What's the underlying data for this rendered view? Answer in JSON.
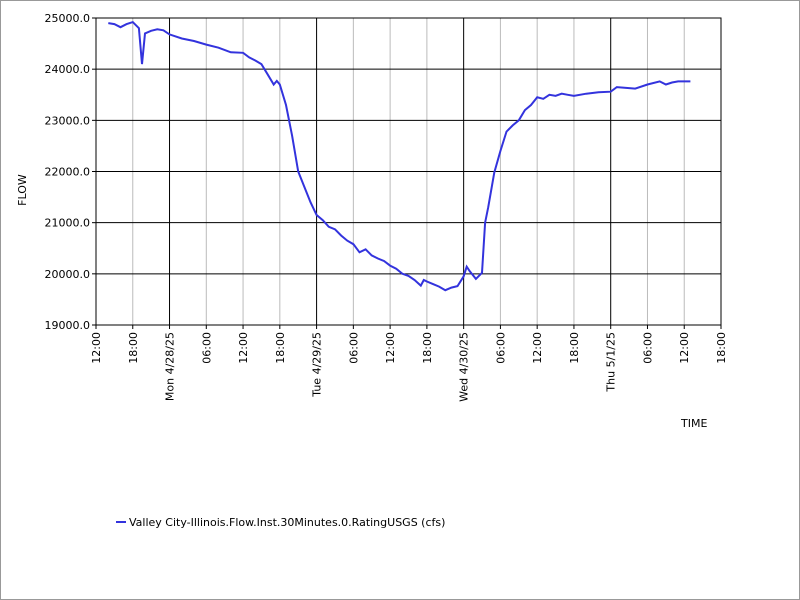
{
  "chart_data": {
    "type": "line",
    "xlabel": "TIME",
    "ylabel": "FLOW",
    "x": [
      "2025-04-27T14:00",
      "2025-04-27T15:00",
      "2025-04-27T16:00",
      "2025-04-27T17:00",
      "2025-04-27T18:00",
      "2025-04-27T19:00",
      "2025-04-27T19:30",
      "2025-04-27T20:00",
      "2025-04-27T21:00",
      "2025-04-27T22:00",
      "2025-04-27T23:00",
      "2025-04-28T00:00",
      "2025-04-28T02:00",
      "2025-04-28T04:00",
      "2025-04-28T06:00",
      "2025-04-28T08:00",
      "2025-04-28T10:00",
      "2025-04-28T12:00",
      "2025-04-28T13:00",
      "2025-04-28T14:00",
      "2025-04-28T15:00",
      "2025-04-28T16:00",
      "2025-04-28T17:00",
      "2025-04-28T17:30",
      "2025-04-28T18:00",
      "2025-04-28T19:00",
      "2025-04-28T20:00",
      "2025-04-28T21:00",
      "2025-04-28T22:00",
      "2025-04-28T23:00",
      "2025-04-29T00:00",
      "2025-04-29T01:00",
      "2025-04-29T02:00",
      "2025-04-29T03:00",
      "2025-04-29T04:00",
      "2025-04-29T05:00",
      "2025-04-29T06:00",
      "2025-04-29T07:00",
      "2025-04-29T08:00",
      "2025-04-29T09:00",
      "2025-04-29T10:00",
      "2025-04-29T11:00",
      "2025-04-29T12:00",
      "2025-04-29T13:00",
      "2025-04-29T14:00",
      "2025-04-29T15:00",
      "2025-04-29T16:00",
      "2025-04-29T17:00",
      "2025-04-29T17:30",
      "2025-04-29T18:00",
      "2025-04-29T19:00",
      "2025-04-29T20:00",
      "2025-04-29T21:00",
      "2025-04-29T22:00",
      "2025-04-29T23:00",
      "2025-04-30T00:00",
      "2025-04-30T00:30",
      "2025-04-30T01:00",
      "2025-04-30T02:00",
      "2025-04-30T03:00",
      "2025-04-30T03:30",
      "2025-04-30T04:00",
      "2025-04-30T05:00",
      "2025-04-30T06:00",
      "2025-04-30T07:00",
      "2025-04-30T08:00",
      "2025-04-30T09:00",
      "2025-04-30T10:00",
      "2025-04-30T11:00",
      "2025-04-30T12:00",
      "2025-04-30T13:00",
      "2025-04-30T14:00",
      "2025-04-30T15:00",
      "2025-04-30T16:00",
      "2025-04-30T17:00",
      "2025-04-30T18:00",
      "2025-04-30T20:00",
      "2025-04-30T22:00",
      "2025-05-01T00:00",
      "2025-05-01T01:00",
      "2025-05-01T02:00",
      "2025-05-01T04:00",
      "2025-05-01T06:00",
      "2025-05-01T08:00",
      "2025-05-01T09:00",
      "2025-05-01T10:00",
      "2025-05-01T11:00",
      "2025-05-01T13:00"
    ],
    "series": [
      {
        "name": "Valley City-Illinois.Flow.Inst.30Minutes.0.RatingUSGS (cfs)",
        "color": "#3333dd",
        "values": [
          24900,
          24880,
          24820,
          24880,
          24920,
          24800,
          24100,
          24700,
          24750,
          24780,
          24760,
          24680,
          24600,
          24550,
          24480,
          24420,
          24330,
          24320,
          24230,
          24170,
          24100,
          23900,
          23700,
          23770,
          23700,
          23300,
          22700,
          22000,
          21700,
          21400,
          21150,
          21050,
          20920,
          20870,
          20750,
          20650,
          20580,
          20420,
          20480,
          20360,
          20300,
          20250,
          20160,
          20100,
          20000,
          19960,
          19880,
          19770,
          19880,
          19850,
          19800,
          19750,
          19680,
          19730,
          19760,
          19950,
          20140,
          20050,
          19900,
          20020,
          21000,
          21300,
          21980,
          22400,
          22780,
          22900,
          23000,
          23200,
          23300,
          23450,
          23420,
          23500,
          23480,
          23520,
          23500,
          23480,
          23520,
          23550,
          23560,
          23650,
          23640,
          23620,
          23700,
          23760,
          23700,
          23740,
          23760,
          23760
        ]
      }
    ],
    "xlim": [
      "2025-04-27T12:00",
      "2025-05-01T18:00"
    ],
    "xticks": [
      {
        "value": "2025-04-27T12:00",
        "label": "12:00"
      },
      {
        "value": "2025-04-27T18:00",
        "label": "18:00"
      },
      {
        "value": "2025-04-28T00:00",
        "label": "Mon 4/28/25",
        "major": true
      },
      {
        "value": "2025-04-28T06:00",
        "label": "06:00"
      },
      {
        "value": "2025-04-28T12:00",
        "label": "12:00"
      },
      {
        "value": "2025-04-28T18:00",
        "label": "18:00"
      },
      {
        "value": "2025-04-29T00:00",
        "label": "Tue 4/29/25",
        "major": true
      },
      {
        "value": "2025-04-29T06:00",
        "label": "06:00"
      },
      {
        "value": "2025-04-29T12:00",
        "label": "12:00"
      },
      {
        "value": "2025-04-29T18:00",
        "label": "18:00"
      },
      {
        "value": "2025-04-30T00:00",
        "label": "Wed 4/30/25",
        "major": true
      },
      {
        "value": "2025-04-30T06:00",
        "label": "06:00"
      },
      {
        "value": "2025-04-30T12:00",
        "label": "12:00"
      },
      {
        "value": "2025-04-30T18:00",
        "label": "18:00"
      },
      {
        "value": "2025-05-01T00:00",
        "label": "Thu 5/1/25",
        "major": true
      },
      {
        "value": "2025-05-01T06:00",
        "label": "06:00"
      },
      {
        "value": "2025-05-01T12:00",
        "label": "12:00"
      },
      {
        "value": "2025-05-01T18:00",
        "label": "18:00"
      }
    ],
    "ylim": [
      19000,
      25000
    ],
    "yticks": [
      {
        "value": 19000,
        "label": "19000.0"
      },
      {
        "value": 20000,
        "label": "20000.0"
      },
      {
        "value": 21000,
        "label": "21000.0"
      },
      {
        "value": 22000,
        "label": "22000.0"
      },
      {
        "value": 23000,
        "label": "23000.0"
      },
      {
        "value": 24000,
        "label": "24000.0"
      },
      {
        "value": 25000,
        "label": "25000.0"
      }
    ],
    "grid": true,
    "legend": "bottom-left"
  }
}
